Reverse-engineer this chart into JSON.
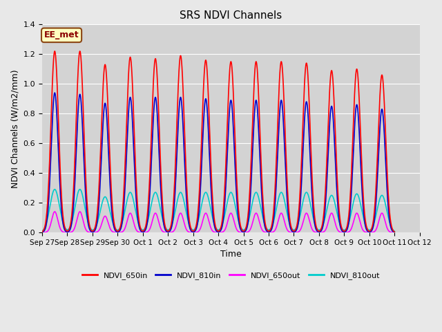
{
  "title": "SRS NDVI Channels",
  "xlabel": "Time",
  "ylabel": "NDVI Channels (W/m2/mm)",
  "ylim": [
    0,
    1.4
  ],
  "background_color": "#e8e8e8",
  "plot_bg_color": "#d3d3d3",
  "annotation_text": "EE_met",
  "annotation_bg": "#ffffc0",
  "annotation_border": "#8b4513",
  "annotation_text_color": "#8b0000",
  "series": {
    "NDVI_650in": {
      "color": "#ff0000",
      "lw": 1.2
    },
    "NDVI_810in": {
      "color": "#0000cc",
      "lw": 1.2
    },
    "NDVI_650out": {
      "color": "#ff00ff",
      "lw": 1.2
    },
    "NDVI_810out": {
      "color": "#00cccc",
      "lw": 1.2
    }
  },
  "tick_labels": [
    "Sep 27",
    "Sep 28",
    "Sep 29",
    "Sep 30",
    "Oct 1",
    "Oct 2",
    "Oct 3",
    "Oct 4",
    "Oct 5",
    "Oct 6",
    "Oct 7",
    "Oct 8",
    "Oct 9",
    "Oct 10",
    "Oct 11",
    "Oct 12"
  ],
  "n_days": 14,
  "day_peaks_650in": [
    1.22,
    1.22,
    1.13,
    1.18,
    1.17,
    1.19,
    1.16,
    1.15,
    1.15,
    1.15,
    1.14,
    1.09,
    1.1,
    1.06
  ],
  "day_peaks_810in": [
    0.94,
    0.93,
    0.87,
    0.91,
    0.91,
    0.91,
    0.9,
    0.89,
    0.89,
    0.89,
    0.88,
    0.85,
    0.86,
    0.83
  ],
  "day_peaks_650out": [
    0.14,
    0.14,
    0.11,
    0.13,
    0.13,
    0.13,
    0.13,
    0.13,
    0.13,
    0.13,
    0.13,
    0.13,
    0.13,
    0.13
  ],
  "day_peaks_810out": [
    0.29,
    0.29,
    0.24,
    0.27,
    0.27,
    0.27,
    0.27,
    0.27,
    0.27,
    0.27,
    0.27,
    0.25,
    0.26,
    0.25
  ],
  "yticks": [
    0.0,
    0.2,
    0.4,
    0.6,
    0.8,
    1.0,
    1.2,
    1.4
  ]
}
